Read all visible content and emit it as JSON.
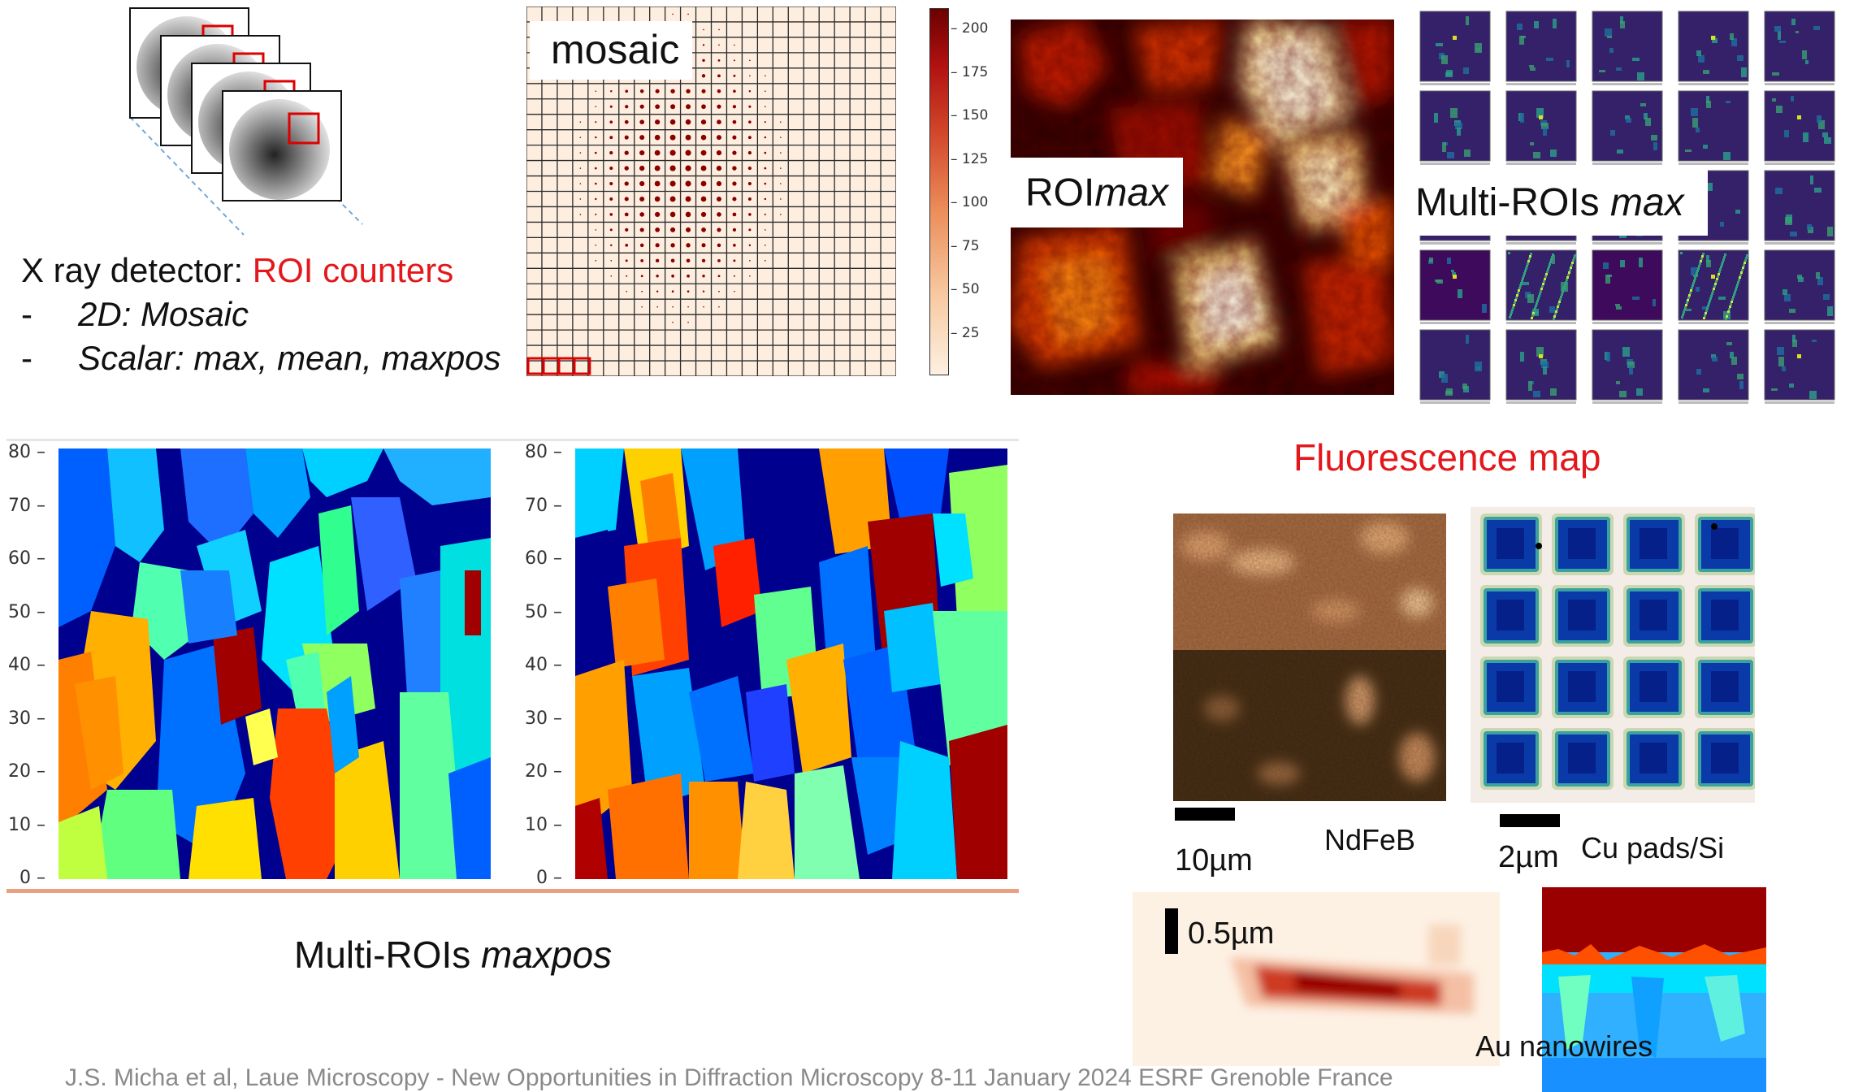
{
  "detector": {
    "title_prefix": "X ray detector: ",
    "title_highlight": "ROI counters",
    "bullets": [
      {
        "dash": "-",
        "text": "2D: Mosaic"
      },
      {
        "dash": "-",
        "text": "Scalar: max, mean, maxpos"
      }
    ]
  },
  "mosaic": {
    "label": "mosaic",
    "colorbar_ticks": [
      "200",
      "175",
      "150",
      "125",
      "100",
      "75",
      "50",
      "25"
    ]
  },
  "roimax": {
    "label_prefix": "ROI",
    "label_italic": "max"
  },
  "multiroi_max": {
    "label_prefix": "Multi-ROIs ",
    "label_italic": "max"
  },
  "maxpos": {
    "label_prefix": "Multi-ROIs ",
    "label_italic": "maxpos",
    "y_ticks": [
      "80",
      "70",
      "60",
      "50",
      "40",
      "30",
      "20",
      "10",
      "0"
    ]
  },
  "fluorescence": {
    "title": "Fluorescence map",
    "ndfeb_scale": "10µm",
    "ndfeb_label": "NdFeB",
    "cu_scale": "2µm",
    "cu_label": "Cu pads/Si",
    "nanowire_scale": "0.5µm",
    "nanowire_label": "Au nanowires"
  },
  "colors": {
    "accent_red": "#e3181c",
    "jet_dark_blue": "#00008f",
    "hot_dark": "#3a0000"
  },
  "footer": "J.S. Micha et al, Laue Microscopy - New Opportunities in Diffraction Microscopy 8-11 January 2024 ESRF Grenoble France"
}
